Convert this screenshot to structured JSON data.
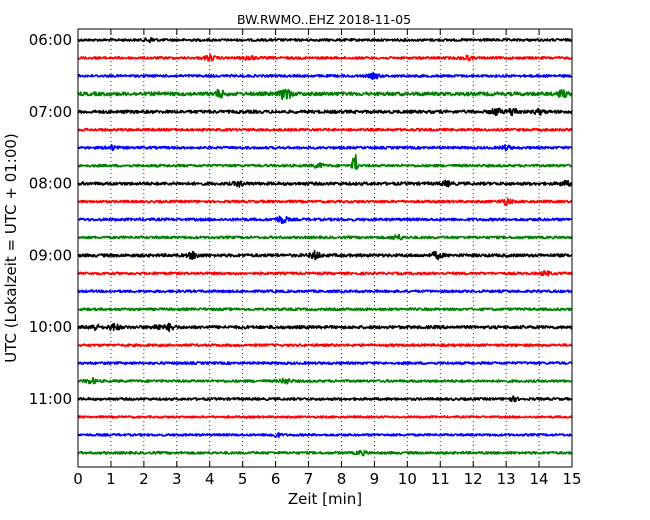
{
  "chart_data": {
    "type": "line",
    "title": "BW.RWMO..EHZ 2018-11-05",
    "xlabel": "Zeit  [min]",
    "ylabel": "UTC (Lokalzeit = UTC + 01:00)",
    "xlim": [
      0,
      15
    ],
    "xticks": [
      0,
      1,
      2,
      3,
      4,
      5,
      6,
      7,
      8,
      9,
      10,
      11,
      12,
      13,
      14,
      15
    ],
    "x_tick_labels": [
      "0",
      "1",
      "2",
      "3",
      "4",
      "5",
      "6",
      "7",
      "8",
      "9",
      "10",
      "11",
      "12",
      "13",
      "14",
      "15"
    ],
    "y_tick_labels": [
      "06:00",
      "07:00",
      "08:00",
      "09:00",
      "10:00",
      "11:00"
    ],
    "y_tick_rows": [
      0,
      4,
      8,
      12,
      16,
      20
    ],
    "row_minutes": 15,
    "trace_colors": [
      "#000000",
      "#ff0000",
      "#0000ff",
      "#008000"
    ],
    "grid": "vertical-dotted",
    "rows": [
      {
        "start": "06:00",
        "color": "#000000",
        "amp": 1.2,
        "events": [
          {
            "t": 2.2,
            "a": 2
          }
        ]
      },
      {
        "start": "06:15",
        "color": "#ff0000",
        "amp": 1.2,
        "events": [
          {
            "t": 4.0,
            "a": 2.5
          },
          {
            "t": 5.2,
            "a": 2
          },
          {
            "t": 11.8,
            "a": 2
          }
        ]
      },
      {
        "start": "06:30",
        "color": "#0000ff",
        "amp": 1.2,
        "events": [
          {
            "t": 9.0,
            "a": 2.5
          }
        ]
      },
      {
        "start": "06:45",
        "color": "#008000",
        "amp": 1.8,
        "events": [
          {
            "t": 4.3,
            "a": 3
          },
          {
            "t": 6.3,
            "a": 6
          },
          {
            "t": 14.7,
            "a": 3
          }
        ]
      },
      {
        "start": "07:00",
        "color": "#000000",
        "amp": 1.5,
        "events": [
          {
            "t": 12.7,
            "a": 3
          },
          {
            "t": 13.2,
            "a": 3.5
          },
          {
            "t": 14.0,
            "a": 2
          }
        ]
      },
      {
        "start": "07:15",
        "color": "#ff0000",
        "amp": 1.2,
        "events": []
      },
      {
        "start": "07:30",
        "color": "#0000ff",
        "amp": 1.2,
        "events": [
          {
            "t": 1.0,
            "a": 2
          },
          {
            "t": 13.0,
            "a": 2
          }
        ]
      },
      {
        "start": "07:45",
        "color": "#008000",
        "amp": 1.2,
        "events": [
          {
            "t": 7.3,
            "a": 2
          },
          {
            "t": 8.4,
            "a": 16
          }
        ]
      },
      {
        "start": "08:00",
        "color": "#000000",
        "amp": 1.5,
        "events": [
          {
            "t": 4.9,
            "a": 2
          },
          {
            "t": 11.2,
            "a": 2
          },
          {
            "t": 14.8,
            "a": 2
          }
        ]
      },
      {
        "start": "08:15",
        "color": "#ff0000",
        "amp": 1.2,
        "events": [
          {
            "t": 13.0,
            "a": 3
          }
        ]
      },
      {
        "start": "08:30",
        "color": "#0000ff",
        "amp": 1.3,
        "events": [
          {
            "t": 6.2,
            "a": 3.5
          }
        ]
      },
      {
        "start": "08:45",
        "color": "#008000",
        "amp": 1.2,
        "events": [
          {
            "t": 9.7,
            "a": 2.5
          }
        ]
      },
      {
        "start": "09:00",
        "color": "#000000",
        "amp": 1.5,
        "events": [
          {
            "t": 3.5,
            "a": 3
          },
          {
            "t": 7.2,
            "a": 3.5
          },
          {
            "t": 10.9,
            "a": 3
          }
        ]
      },
      {
        "start": "09:15",
        "color": "#ff0000",
        "amp": 1.2,
        "events": [
          {
            "t": 14.2,
            "a": 1.8
          }
        ]
      },
      {
        "start": "09:30",
        "color": "#0000ff",
        "amp": 1.2,
        "events": []
      },
      {
        "start": "09:45",
        "color": "#008000",
        "amp": 1.2,
        "events": []
      },
      {
        "start": "10:00",
        "color": "#000000",
        "amp": 1.5,
        "events": [
          {
            "t": 0.5,
            "a": 2.5
          },
          {
            "t": 1.1,
            "a": 3
          },
          {
            "t": 2.4,
            "a": 2
          },
          {
            "t": 2.8,
            "a": 3
          }
        ]
      },
      {
        "start": "10:15",
        "color": "#ff0000",
        "amp": 1.2,
        "events": []
      },
      {
        "start": "10:30",
        "color": "#0000ff",
        "amp": 1.2,
        "events": []
      },
      {
        "start": "10:45",
        "color": "#008000",
        "amp": 1.2,
        "events": [
          {
            "t": 0.4,
            "a": 2.5
          },
          {
            "t": 6.3,
            "a": 2.5
          }
        ]
      },
      {
        "start": "11:00",
        "color": "#000000",
        "amp": 1.2,
        "events": [
          {
            "t": 13.2,
            "a": 1.8
          }
        ]
      },
      {
        "start": "11:15",
        "color": "#ff0000",
        "amp": 1.0,
        "events": []
      },
      {
        "start": "11:30",
        "color": "#0000ff",
        "amp": 1.1,
        "events": [
          {
            "t": 6.0,
            "a": 2
          }
        ]
      },
      {
        "start": "11:45",
        "color": "#008000",
        "amp": 1.2,
        "events": [
          {
            "t": 8.6,
            "a": 1.8
          }
        ]
      }
    ]
  }
}
